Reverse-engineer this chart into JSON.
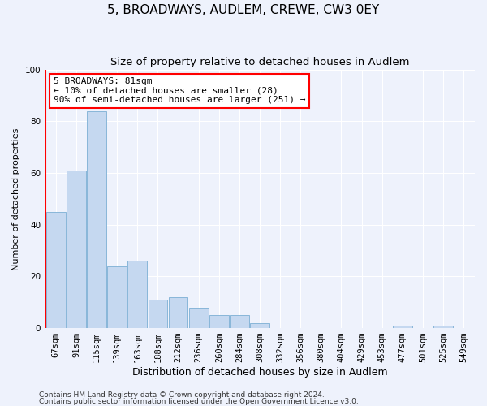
{
  "title": "5, BROADWAYS, AUDLEM, CREWE, CW3 0EY",
  "subtitle": "Size of property relative to detached houses in Audlem",
  "xlabel": "Distribution of detached houses by size in Audlem",
  "ylabel": "Number of detached properties",
  "bar_values": [
    45,
    61,
    84,
    24,
    26,
    11,
    12,
    8,
    5,
    5,
    2,
    0,
    0,
    0,
    0,
    0,
    0,
    1,
    0,
    1,
    0
  ],
  "bar_labels": [
    "67sqm",
    "91sqm",
    "115sqm",
    "139sqm",
    "163sqm",
    "188sqm",
    "212sqm",
    "236sqm",
    "260sqm",
    "284sqm",
    "308sqm",
    "332sqm",
    "356sqm",
    "380sqm",
    "404sqm",
    "429sqm",
    "453sqm",
    "477sqm",
    "501sqm",
    "525sqm",
    "549sqm"
  ],
  "bar_color": "#c5d8f0",
  "bar_edge_color": "#7bafd4",
  "vline_color": "red",
  "vline_x_index": 0,
  "annotation_box_text": "5 BROADWAYS: 81sqm\n← 10% of detached houses are smaller (28)\n90% of semi-detached houses are larger (251) →",
  "ylim": [
    0,
    100
  ],
  "yticks": [
    0,
    20,
    40,
    60,
    80,
    100
  ],
  "background_color": "#eef2fc",
  "grid_color": "#ffffff",
  "footer_line1": "Contains HM Land Registry data © Crown copyright and database right 2024.",
  "footer_line2": "Contains public sector information licensed under the Open Government Licence v3.0.",
  "title_fontsize": 11,
  "subtitle_fontsize": 9.5,
  "xlabel_fontsize": 9,
  "ylabel_fontsize": 8,
  "tick_fontsize": 7.5,
  "annot_fontsize": 8
}
